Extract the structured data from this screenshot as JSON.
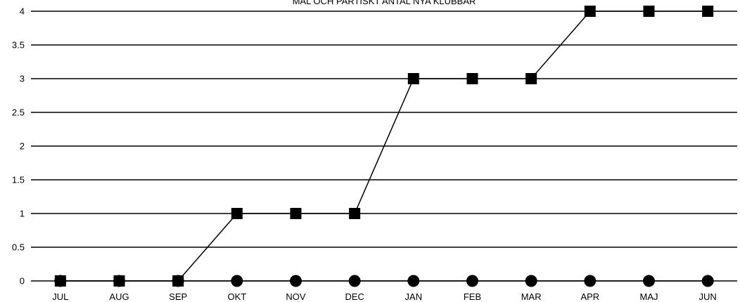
{
  "chart_data": {
    "type": "line",
    "title": "MÅL OCH PARTISKT ANTAL NYA KLUBBAR",
    "xlabel": "",
    "ylabel": "",
    "categories": [
      "JUL",
      "AUG",
      "SEP",
      "OKT",
      "NOV",
      "DEC",
      "JAN",
      "FEB",
      "MAR",
      "APR",
      "MAJ",
      "JUN"
    ],
    "y_ticks": [
      "0",
      "0.5",
      "1",
      "1.5",
      "2",
      "2.5",
      "3",
      "3.5",
      "4"
    ],
    "ylim": [
      0,
      4
    ],
    "grid": true,
    "legend": "none",
    "series": [
      {
        "marker": "square",
        "color": "#000000",
        "values": [
          0,
          0,
          0,
          1,
          1,
          1,
          3,
          3,
          3,
          4,
          4,
          4
        ]
      },
      {
        "marker": "circle",
        "color": "#000000",
        "values": [
          0,
          0,
          0,
          0,
          0,
          0,
          0,
          0,
          0,
          0,
          0,
          0
        ]
      }
    ]
  }
}
